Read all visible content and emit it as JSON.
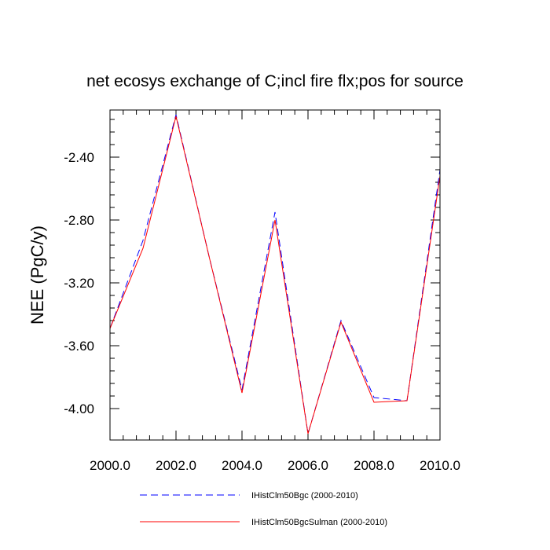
{
  "chart_data": {
    "type": "line",
    "title": "net ecosys exchange of C;incl fire flx;pos for source",
    "xlabel": "",
    "ylabel": "NEE  (PgC/y)",
    "xlim": [
      2000,
      2010
    ],
    "ylim": [
      -4.2,
      -2.1
    ],
    "x_ticks": [
      2000,
      2002,
      2004,
      2006,
      2008,
      2010
    ],
    "x_tick_labels": [
      "2000.0",
      "2002.0",
      "2004.0",
      "2006.0",
      "2008.0",
      "2010.0"
    ],
    "y_ticks": [
      -2.4,
      -2.8,
      -3.2,
      -3.6,
      -4.0
    ],
    "y_tick_labels": [
      "-2.40",
      "-2.80",
      "-3.20",
      "-3.60",
      "-4.00"
    ],
    "grid": false,
    "legend_position": "bottom",
    "x": [
      2000,
      2001,
      2002,
      2003,
      2004,
      2005,
      2006,
      2007,
      2008,
      2009,
      2010
    ],
    "series": [
      {
        "name": "IHistClm50Bgc (2000-2010)",
        "color": "#0000ff",
        "dash": "dashed",
        "values": [
          -3.49,
          -2.93,
          -2.13,
          -3.03,
          -3.88,
          -2.75,
          -4.16,
          -3.44,
          -3.93,
          -3.95,
          -2.48
        ]
      },
      {
        "name": "IHistClm50BgcSulman (2000-2010)",
        "color": "#ff0000",
        "dash": "solid",
        "values": [
          -3.49,
          -2.98,
          -2.14,
          -3.03,
          -3.9,
          -2.8,
          -4.16,
          -3.45,
          -3.96,
          -3.95,
          -2.52
        ]
      }
    ]
  }
}
